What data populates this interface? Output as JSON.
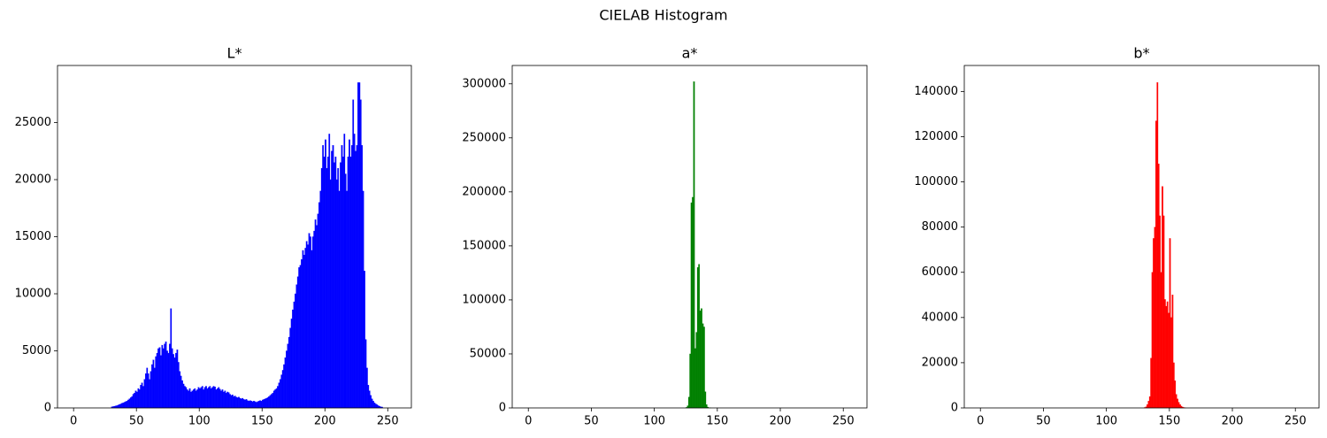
{
  "title": "CIELAB Histogram",
  "chart_data": [
    {
      "type": "histogram",
      "title": "L*",
      "color": "#0000ff",
      "bins": [
        30,
        31,
        32,
        33,
        34,
        35,
        36,
        37,
        38,
        39,
        40,
        41,
        42,
        43,
        44,
        45,
        46,
        47,
        48,
        49,
        50,
        51,
        52,
        53,
        54,
        55,
        56,
        57,
        58,
        59,
        60,
        61,
        62,
        63,
        64,
        65,
        66,
        67,
        68,
        69,
        70,
        71,
        72,
        73,
        74,
        75,
        76,
        77,
        78,
        79,
        80,
        81,
        82,
        83,
        84,
        85,
        86,
        87,
        88,
        89,
        90,
        91,
        92,
        93,
        94,
        95,
        96,
        97,
        98,
        99,
        100,
        101,
        102,
        103,
        104,
        105,
        106,
        107,
        108,
        109,
        110,
        111,
        112,
        113,
        114,
        115,
        116,
        117,
        118,
        119,
        120,
        121,
        122,
        123,
        124,
        125,
        126,
        127,
        128,
        129,
        130,
        131,
        132,
        133,
        134,
        135,
        136,
        137,
        138,
        139,
        140,
        141,
        142,
        143,
        144,
        145,
        146,
        147,
        148,
        149,
        150,
        151,
        152,
        153,
        154,
        155,
        156,
        157,
        158,
        159,
        160,
        161,
        162,
        163,
        164,
        165,
        166,
        167,
        168,
        169,
        170,
        171,
        172,
        173,
        174,
        175,
        176,
        177,
        178,
        179,
        180,
        181,
        182,
        183,
        184,
        185,
        186,
        187,
        188,
        189,
        190,
        191,
        192,
        193,
        194,
        195,
        196,
        197,
        198,
        199,
        200,
        201,
        202,
        203,
        204,
        205,
        206,
        207,
        208,
        209,
        210,
        211,
        212,
        213,
        214,
        215,
        216,
        217,
        218,
        219,
        220,
        221,
        222,
        223,
        224,
        225,
        226,
        227,
        228,
        229,
        230,
        231,
        232,
        233,
        234,
        235,
        236,
        237,
        238,
        239,
        240,
        241,
        242,
        243,
        244,
        245,
        246
      ],
      "values": [
        100,
        120,
        150,
        180,
        200,
        250,
        300,
        350,
        400,
        450,
        500,
        550,
        600,
        700,
        800,
        900,
        1000,
        1200,
        1300,
        1500,
        1400,
        1700,
        1600,
        2000,
        2200,
        1900,
        2500,
        3000,
        3500,
        3000,
        2500,
        3200,
        3800,
        4200,
        3500,
        4500,
        4800,
        5200,
        5300,
        4600,
        5500,
        5200,
        5600,
        5800,
        5000,
        4800,
        5600,
        8700,
        5200,
        4700,
        4400,
        4800,
        5100,
        4000,
        3200,
        2800,
        2400,
        2100,
        1900,
        1800,
        1600,
        1500,
        1700,
        1400,
        1500,
        1600,
        1700,
        1500,
        1600,
        1800,
        1700,
        1800,
        1900,
        1600,
        1800,
        1900,
        1700,
        1800,
        1900,
        1700,
        1800,
        1900,
        1850,
        1600,
        1700,
        1800,
        1650,
        1500,
        1600,
        1400,
        1500,
        1300,
        1400,
        1350,
        1200,
        1100,
        1150,
        1000,
        1050,
        950,
        900,
        950,
        850,
        800,
        850,
        750,
        700,
        750,
        650,
        600,
        650,
        600,
        550,
        600,
        550,
        500,
        550,
        600,
        650,
        600,
        700,
        750,
        800,
        850,
        900,
        1000,
        1100,
        1200,
        1300,
        1500,
        1600,
        1700,
        1900,
        2200,
        2500,
        2900,
        3300,
        3800,
        4400,
        5000,
        5600,
        6200,
        7000,
        7800,
        8600,
        9300,
        10000,
        10800,
        11500,
        12300,
        12500,
        13000,
        13800,
        13400,
        14000,
        14600,
        14300,
        15300,
        15000,
        13800,
        15000,
        15500,
        16500,
        16000,
        17000,
        18000,
        19000,
        21000,
        23000,
        22000,
        23500,
        21000,
        22000,
        24000,
        20000,
        22500,
        23000,
        21500,
        22000,
        20000,
        21000,
        19000,
        21500,
        23000,
        22000,
        24000,
        20500,
        19000,
        22000,
        23500,
        22000,
        23000,
        27000,
        24000,
        22500,
        23000,
        28500,
        28500,
        27000,
        23000,
        19000,
        12000,
        6000,
        3500,
        2000,
        1500,
        1100,
        800,
        600,
        450,
        350,
        280,
        200,
        150,
        100,
        80
      ],
      "xlim": [
        -12.8,
        268.8
      ],
      "xticks": [
        0,
        50,
        100,
        150,
        200,
        250
      ],
      "ylim": [
        0,
        30000
      ],
      "yticks": [
        0,
        5000,
        10000,
        15000,
        20000,
        25000
      ]
    },
    {
      "type": "histogram",
      "title": "a*",
      "color": "#008000",
      "bins": [
        0,
        125,
        126,
        127,
        128,
        129,
        130,
        131,
        132,
        133,
        134,
        135,
        136,
        137,
        138,
        139,
        140,
        141,
        142,
        143,
        144,
        145,
        256
      ],
      "values": [
        0,
        500,
        2000,
        10000,
        50000,
        190000,
        195000,
        302000,
        55000,
        70000,
        130000,
        133000,
        90000,
        92000,
        78000,
        75000,
        15000,
        3000,
        800,
        200,
        50,
        0
      ],
      "xlim": [
        -12.8,
        268.8
      ],
      "xticks": [
        0,
        50,
        100,
        150,
        200,
        250
      ],
      "ylim": [
        0,
        317000
      ],
      "yticks": [
        0,
        50000,
        100000,
        150000,
        200000,
        250000,
        300000
      ]
    },
    {
      "type": "histogram",
      "title": "b*",
      "color": "#ff0000",
      "bins": [
        0,
        130,
        131,
        132,
        133,
        134,
        135,
        136,
        137,
        138,
        139,
        140,
        141,
        142,
        143,
        144,
        145,
        146,
        147,
        148,
        149,
        150,
        151,
        152,
        153,
        154,
        155,
        156,
        157,
        158,
        159,
        160,
        161,
        162,
        163,
        256
      ],
      "values": [
        0,
        200,
        500,
        1500,
        3000,
        5000,
        22000,
        60000,
        75000,
        80000,
        127000,
        144000,
        108000,
        85000,
        60000,
        98000,
        85000,
        48000,
        45000,
        47000,
        42000,
        75000,
        40000,
        50000,
        20000,
        12000,
        6000,
        4000,
        2500,
        1500,
        800,
        400,
        200,
        100,
        0
      ],
      "xlim": [
        -12.8,
        268.8
      ],
      "xticks": [
        0,
        50,
        100,
        150,
        200,
        250
      ],
      "ylim": [
        0,
        151500
      ],
      "yticks": [
        0,
        20000,
        40000,
        60000,
        80000,
        100000,
        120000,
        140000
      ]
    }
  ]
}
